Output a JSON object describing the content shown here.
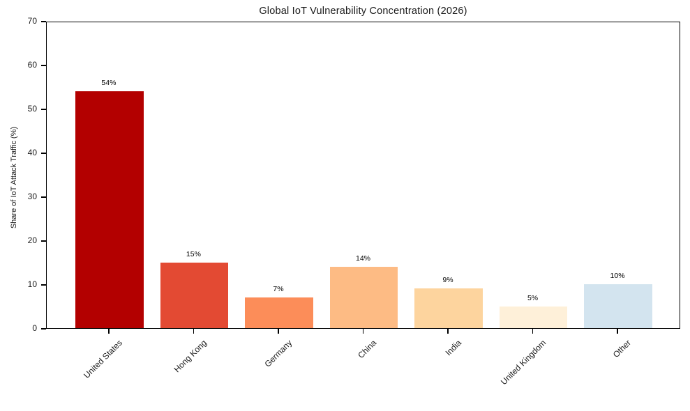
{
  "chart_data": {
    "type": "bar",
    "title": "Global IoT Vulnerability Concentration (2026)",
    "xlabel": "",
    "ylabel": "Share of IoT Attack Traffic (%)",
    "categories": [
      "United States",
      "Hong Kong",
      "Germany",
      "China",
      "India",
      "United Kingdom",
      "Other"
    ],
    "values": [
      54,
      15,
      7,
      14,
      9,
      5,
      10
    ],
    "value_labels": [
      "54%",
      "15%",
      "7%",
      "14%",
      "9%",
      "5%",
      "10%"
    ],
    "bar_colors": [
      "#b30000",
      "#e34a33",
      "#fc8d59",
      "#fdbb84",
      "#fdd49e",
      "#fef0d9",
      "#d3e4ef"
    ],
    "ylim": [
      0,
      70
    ],
    "yticks": [
      0,
      10,
      20,
      30,
      40,
      50,
      60,
      70
    ],
    "grid": false,
    "legend_position": "none",
    "x_tick_rotation_deg": 45,
    "spine_color": "#000000",
    "background_color": "#ffffff"
  }
}
